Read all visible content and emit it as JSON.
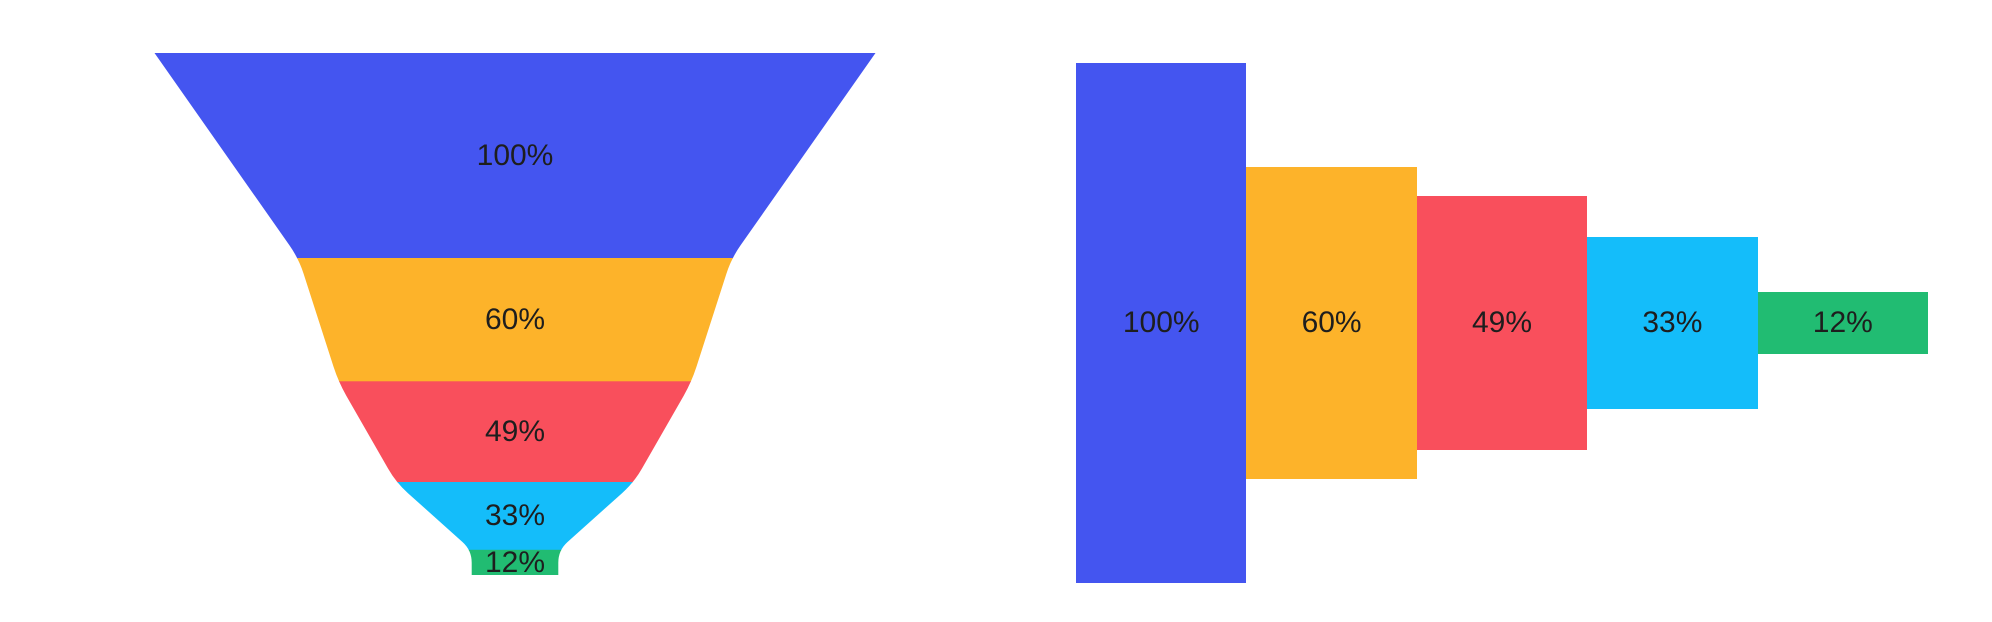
{
  "page": {
    "background_color": "#ffffff",
    "label_text_color": "#1e1e1e"
  },
  "chart_data": [
    {
      "type": "funnel",
      "variant": "vertical-tapered-funnel",
      "title": "",
      "legend_position": "none",
      "grid": false,
      "stages": [
        {
          "label": "100%",
          "value": 100,
          "color": "#4455f0"
        },
        {
          "label": "60%",
          "value": 60,
          "color": "#fdb32a"
        },
        {
          "label": "49%",
          "value": 49,
          "color": "#f94f5c"
        },
        {
          "label": "33%",
          "value": 33,
          "color": "#14bdfa"
        },
        {
          "label": "12%",
          "value": 12,
          "color": "#21bc72"
        }
      ]
    },
    {
      "type": "funnel",
      "variant": "horizontal-centered-bar-funnel",
      "title": "",
      "legend_position": "none",
      "grid": false,
      "stages": [
        {
          "label": "100%",
          "value": 100,
          "color": "#4455f0"
        },
        {
          "label": "60%",
          "value": 60,
          "color": "#fdb32a"
        },
        {
          "label": "49%",
          "value": 49,
          "color": "#f94f5c"
        },
        {
          "label": "33%",
          "value": 33,
          "color": "#14bdfa"
        },
        {
          "label": "12%",
          "value": 12,
          "color": "#21bc72"
        }
      ]
    }
  ]
}
